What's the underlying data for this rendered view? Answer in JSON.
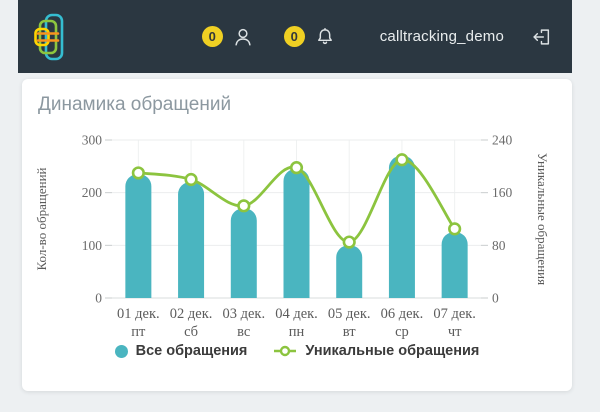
{
  "header": {
    "account": "calltracking_demo",
    "operators_badge": "0",
    "notifications_badge": "0",
    "badge_color": "#f0d023",
    "background_color": "#2b3741",
    "icons": {
      "logo": "callibri-logo",
      "operators": "person-icon",
      "notifications": "bell-icon",
      "logout": "logout-icon"
    }
  },
  "chart": {
    "title": "Динамика обращений"
  },
  "chart_data": {
    "type": "combo",
    "title": "Динамика обращений",
    "categories": [
      "01 дек.",
      "02 дек.",
      "03 дек.",
      "04 дек.",
      "05 дек.",
      "06 дек.",
      "07 дек."
    ],
    "weekdays": [
      "пт",
      "сб",
      "вс",
      "пн",
      "вт",
      "ср",
      "чт"
    ],
    "series": [
      {
        "name": "Все обращения",
        "type": "bar",
        "axis": "left",
        "color": "#4ab5c0",
        "values": [
          235,
          220,
          170,
          245,
          100,
          270,
          125
        ]
      },
      {
        "name": "Уникальные обращения",
        "type": "line",
        "axis": "right",
        "color": "#8cc43f",
        "marker_fill": "#ffffff",
        "values": [
          190,
          180,
          140,
          198,
          85,
          210,
          105
        ]
      }
    ],
    "left_axis": {
      "label": "Кол-во обращений",
      "ticks": [
        0,
        100,
        200,
        300
      ],
      "min": 0,
      "max": 300
    },
    "right_axis": {
      "label": "Уникальные обращения",
      "ticks": [
        0,
        80,
        160,
        240
      ],
      "min": 0,
      "max": 240
    },
    "grid": true,
    "legend_position": "bottom"
  },
  "colors": {
    "page_bg": "#edf0f2",
    "card_bg": "#ffffff",
    "title_gray": "#8c98a0",
    "grid_line": "#ebedee",
    "baseline": "#d9dcdd"
  }
}
